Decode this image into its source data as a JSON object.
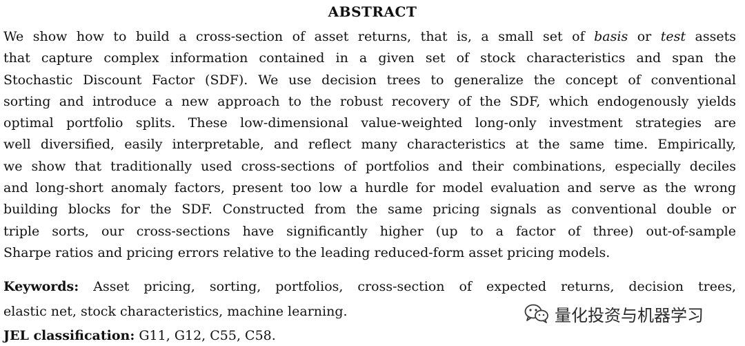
{
  "heading": "ABSTRACT",
  "abstract": {
    "line1_a": "We show how to build a cross-section of asset returns, that is, a small set of ",
    "line1_em1": "basis",
    "line1_b": " or ",
    "line1_em2": "test",
    "line1_c": " assets",
    "line2": "that capture complex information contained in a given set of stock characteristics and span the",
    "line3": "Stochastic Discount Factor (SDF). We use decision trees to generalize the concept of conventional",
    "line4": "sorting and introduce a new approach to the robust recovery of the SDF, which endogenously yields",
    "line5": "optimal portfolio splits. These low-dimensional value-weighted long-only investment strategies are",
    "line6": "well diversified, easily interpretable, and reflect many characteristics at the same time. Empirically,",
    "line7": "we show that traditionally used cross-sections of portfolios and their combinations, especially deciles",
    "line8": "and long-short anomaly factors, present too low a hurdle for model evaluation and serve as the wrong",
    "line9": "building blocks for the SDF. Constructed from the same pricing signals as conventional double or",
    "line10": "triple sorts, our cross-sections have significantly higher (up to a factor of three) out-of-sample",
    "line11": "Sharpe ratios and pricing errors relative to the leading reduced-form asset pricing models."
  },
  "keywords": {
    "label": "Keywords:",
    "line1": " Asset pricing, sorting, portfolios, cross-section of expected returns, decision trees,",
    "line2": "elastic net, stock characteristics, machine learning."
  },
  "jel": {
    "label": "JEL classification:",
    "value": " G11, G12, C55, C58."
  },
  "watermark": {
    "icon": "wechat-icon",
    "text": "量化投资与机器学习"
  }
}
